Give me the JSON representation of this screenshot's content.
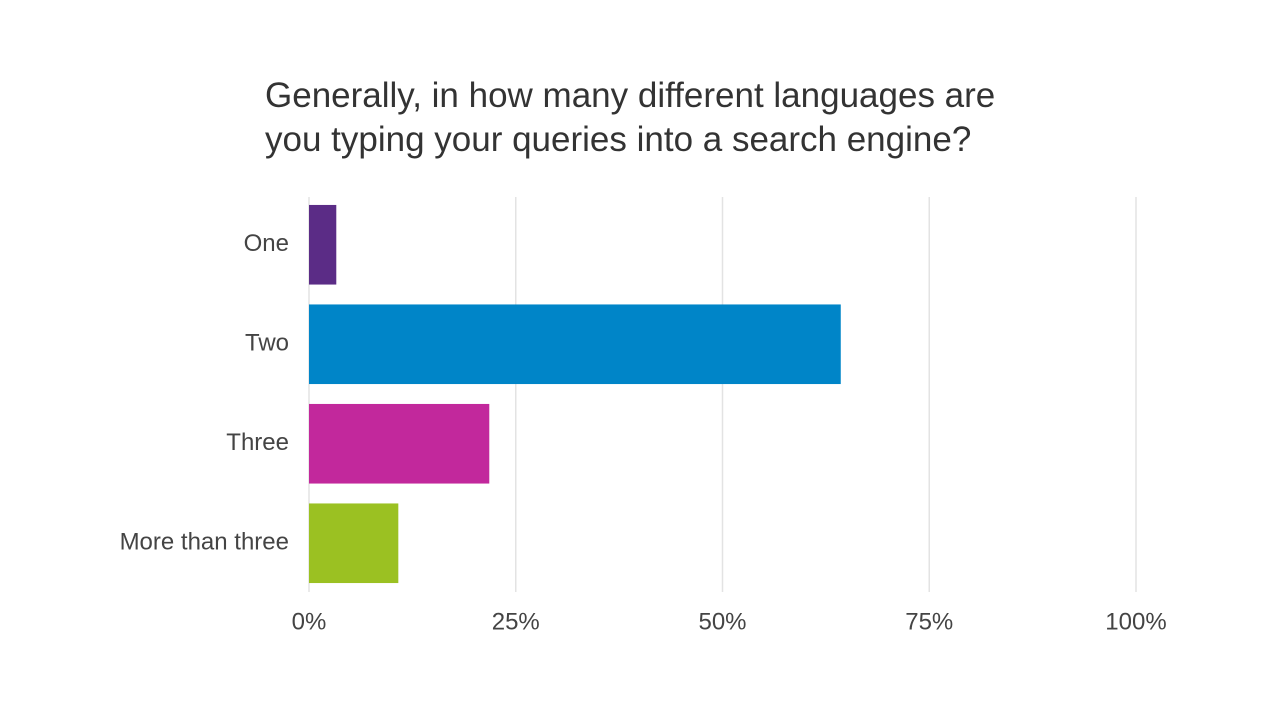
{
  "chart_data": {
    "type": "bar",
    "orientation": "horizontal",
    "title": "Generally, in how many different languages are you typing your queries into a search engine?",
    "categories": [
      "One",
      "Two",
      "Three",
      "More than three"
    ],
    "values": [
      3.3,
      64.3,
      21.8,
      10.8
    ],
    "colors": [
      "#5b2c86",
      "#0085c8",
      "#c2289c",
      "#9bc122"
    ],
    "xlim": [
      0,
      100
    ],
    "xticks": [
      {
        "value": 0,
        "label": "0%"
      },
      {
        "value": 25,
        "label": "25%"
      },
      {
        "value": 50,
        "label": "50%"
      },
      {
        "value": 75,
        "label": "75%"
      },
      {
        "value": 100,
        "label": "100%"
      }
    ],
    "grid": true
  }
}
